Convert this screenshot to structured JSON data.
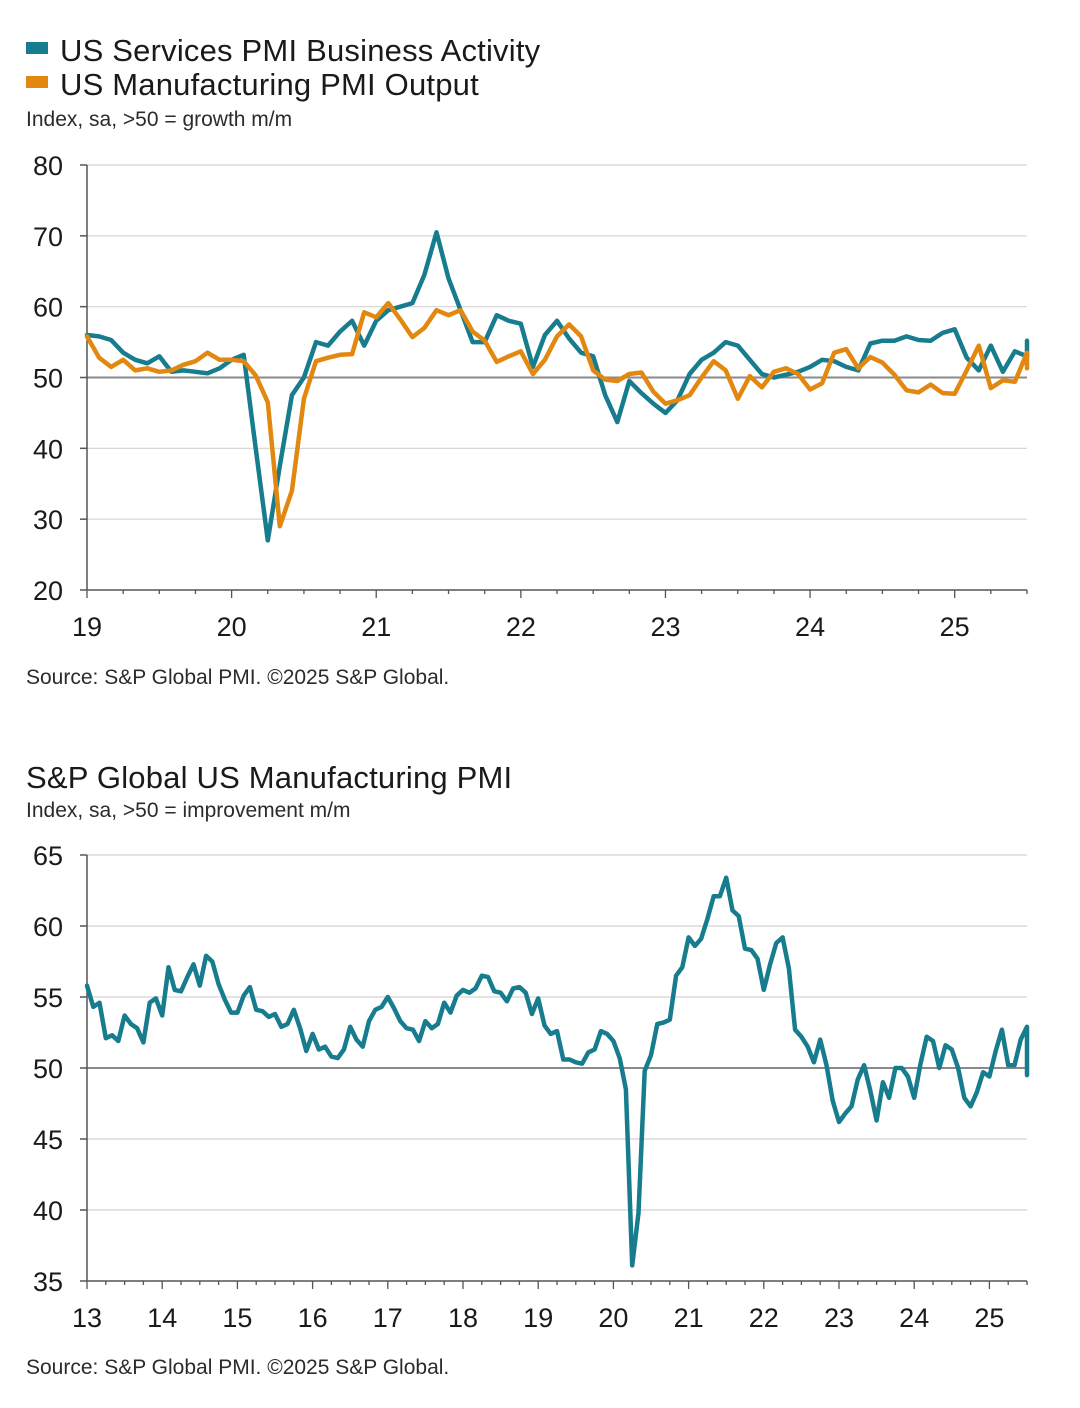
{
  "chart_data": [
    {
      "type": "line",
      "title": "",
      "subtitle": "Index, sa, >50 = growth m/m",
      "source": "Source: S&P Global PMI. ©2025 S&P Global.",
      "xlabel": "",
      "ylabel": "",
      "ylim": [
        20,
        80
      ],
      "yticks": [
        20,
        30,
        40,
        50,
        60,
        70,
        80
      ],
      "xlim": [
        2019.0,
        2025.5
      ],
      "xticks": [
        {
          "value": 2019.0,
          "label": "19"
        },
        {
          "value": 2020.0,
          "label": "20"
        },
        {
          "value": 2021.0,
          "label": "21"
        },
        {
          "value": 2022.0,
          "label": "22"
        },
        {
          "value": 2023.0,
          "label": "23"
        },
        {
          "value": 2024.0,
          "label": "24"
        },
        {
          "value": 2025.0,
          "label": "25"
        }
      ],
      "grid": "horizontal",
      "reference_line": 50,
      "legend_position": "top-left",
      "series": [
        {
          "name": "US Services PMI Business Activity",
          "color": "#167c8e",
          "start": 2019.0,
          "step_months": 1,
          "values": [
            56,
            55.8,
            55.3,
            53.5,
            52.5,
            52,
            53,
            50.8,
            51,
            50.8,
            50.6,
            51.3,
            52.5,
            53.2,
            40,
            27,
            37.5,
            47.5,
            50,
            55,
            54.5,
            56.5,
            58,
            54.5,
            58,
            59.5,
            60,
            60.5,
            64.5,
            70.5,
            64,
            59.5,
            55,
            55,
            58.8,
            58,
            57.6,
            51.5,
            56,
            58,
            55.5,
            53.5,
            53,
            47.5,
            43.7,
            49.5,
            47.8,
            46.3,
            45,
            46.8,
            50.5,
            52.5,
            53.5,
            55,
            54.5,
            52.5,
            50.5,
            50,
            50.4,
            50.8,
            51.5,
            52.5,
            52.3,
            51.5,
            51,
            54.8,
            55.2,
            55.2,
            55.8,
            55.3,
            55.2,
            56.3,
            56.8,
            52.8,
            51,
            54.5,
            50.8,
            53.7,
            53,
            55.2
          ]
        },
        {
          "name": "US Manufacturing PMI Output",
          "color": "#e2870f",
          "start": 2019.0,
          "step_months": 1,
          "values": [
            55.8,
            52.8,
            51.5,
            52.5,
            51,
            51.3,
            50.8,
            51,
            51.8,
            52.3,
            53.5,
            52.5,
            52.5,
            52.3,
            50.3,
            46.5,
            29,
            34,
            47,
            52.3,
            52.8,
            53.2,
            53.3,
            59.2,
            58.5,
            60.5,
            58.2,
            55.7,
            57,
            59.5,
            58.8,
            59.5,
            56.5,
            55.2,
            52.2,
            53,
            53.7,
            50.5,
            52.5,
            55.8,
            57.5,
            55.8,
            51,
            49.7,
            49.5,
            50.5,
            50.7,
            48,
            46.3,
            46.8,
            47.5,
            50,
            52.3,
            51,
            47,
            50.2,
            48.6,
            50.8,
            51.3,
            50.5,
            48.3,
            49.2,
            53.5,
            54,
            51.3,
            52.9,
            52.1,
            50.4,
            48.2,
            47.9,
            49,
            47.8,
            47.7,
            51,
            54.5,
            48.5,
            49.6,
            49.4,
            53.5,
            51.3
          ]
        }
      ]
    },
    {
      "type": "line",
      "title": "S&P Global US Manufacturing PMI",
      "subtitle": "Index, sa, >50 = improvement m/m",
      "source": "Source: S&P Global PMI. ©2025 S&P Global.",
      "xlabel": "",
      "ylabel": "",
      "ylim": [
        35,
        65
      ],
      "yticks": [
        35,
        40,
        45,
        50,
        55,
        60,
        65
      ],
      "xlim": [
        2013.0,
        2025.5
      ],
      "xticks": [
        {
          "value": 2013.0,
          "label": "13"
        },
        {
          "value": 2014.0,
          "label": "14"
        },
        {
          "value": 2015.0,
          "label": "15"
        },
        {
          "value": 2016.0,
          "label": "16"
        },
        {
          "value": 2017.0,
          "label": "17"
        },
        {
          "value": 2018.0,
          "label": "18"
        },
        {
          "value": 2019.0,
          "label": "19"
        },
        {
          "value": 2020.0,
          "label": "20"
        },
        {
          "value": 2021.0,
          "label": "21"
        },
        {
          "value": 2022.0,
          "label": "22"
        },
        {
          "value": 2023.0,
          "label": "23"
        },
        {
          "value": 2024.0,
          "label": "24"
        },
        {
          "value": 2025.0,
          "label": "25"
        }
      ],
      "grid": "horizontal",
      "reference_line": 50,
      "series": [
        {
          "name": "",
          "color": "#167c8e",
          "start": 2013.0,
          "step_months": 1,
          "values": [
            55.8,
            54.3,
            54.6,
            52.1,
            52.3,
            51.9,
            53.7,
            53.1,
            52.8,
            51.8,
            54.6,
            54.9,
            53.7,
            57.1,
            55.5,
            55.4,
            56.4,
            57.3,
            55.8,
            57.9,
            57.5,
            55.9,
            54.8,
            53.9,
            53.9,
            55.1,
            55.7,
            54.1,
            54.0,
            53.6,
            53.8,
            52.9,
            53.1,
            54.1,
            52.8,
            51.2,
            52.4,
            51.3,
            51.5,
            50.8,
            50.7,
            51.3,
            52.9,
            52.0,
            51.5,
            53.3,
            54.1,
            54.3,
            55.0,
            54.2,
            53.3,
            52.8,
            52.7,
            51.9,
            53.3,
            52.8,
            53.1,
            54.6,
            53.9,
            55.1,
            55.5,
            55.3,
            55.6,
            56.5,
            56.4,
            55.4,
            55.3,
            54.7,
            55.6,
            55.7,
            55.3,
            53.8,
            54.9,
            53.0,
            52.4,
            52.6,
            50.6,
            50.6,
            50.4,
            50.3,
            51.1,
            51.3,
            52.6,
            52.4,
            51.9,
            50.7,
            48.5,
            36.1,
            39.8,
            49.8,
            50.9,
            53.1,
            53.2,
            53.4,
            56.5,
            57.1,
            59.2,
            58.6,
            59.1,
            60.5,
            62.1,
            62.1,
            63.4,
            61.1,
            60.7,
            58.4,
            58.3,
            57.7,
            55.5,
            57.3,
            58.8,
            59.2,
            57.0,
            52.7,
            52.2,
            51.5,
            50.4,
            52.0,
            50.2,
            47.7,
            46.2,
            46.8,
            47.3,
            49.2,
            50.2,
            48.4,
            46.3,
            49.0,
            47.9,
            50.0,
            50.0,
            49.4,
            47.9,
            50.3,
            52.2,
            51.9,
            50.0,
            51.6,
            51.3,
            50.0,
            47.9,
            47.3,
            48.3,
            49.7,
            49.4,
            51.2,
            52.7,
            50.2,
            50.2,
            52.0,
            52.9,
            49.5
          ]
        }
      ]
    }
  ]
}
